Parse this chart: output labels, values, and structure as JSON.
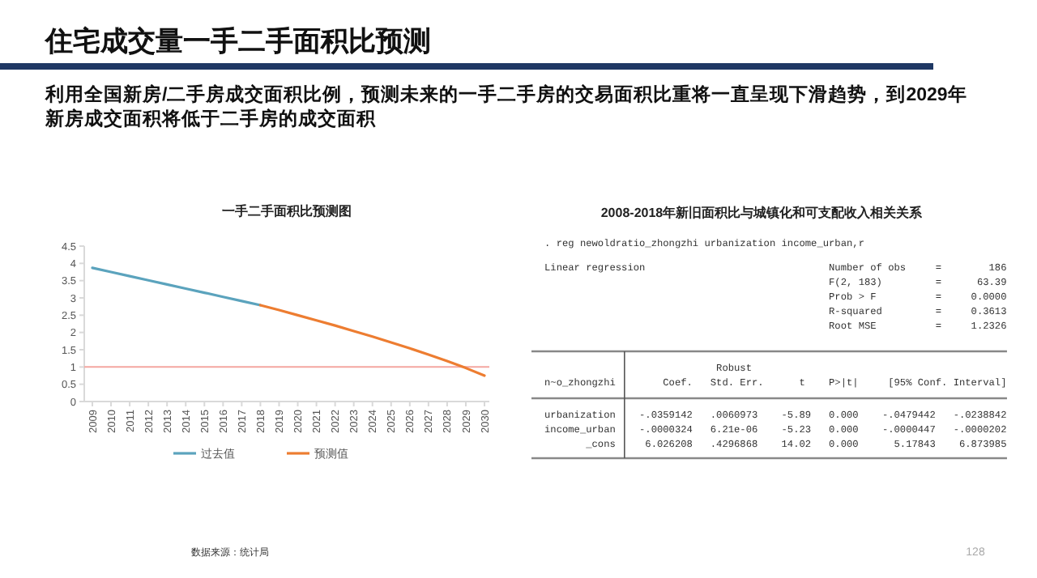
{
  "chart_data": [
    {
      "type": "line",
      "title": "一手二手面积比预测图",
      "annotations": [
        "住宅成交量一手二手面积比预测",
        "利用全国新房/二手房成交面积比例，预测未来的一手二手房的交易面积比重将一直呈现下滑趋势，到2029年新房成交面积将低于二手房的成交面积",
        "数据来源：统计局",
        "128"
      ],
      "categories": [
        "2009",
        "2010",
        "2011",
        "2012",
        "2013",
        "2014",
        "2015",
        "2016",
        "2017",
        "2018",
        "2019",
        "2020",
        "2021",
        "2022",
        "2023",
        "2024",
        "2025",
        "2026",
        "2027",
        "2028",
        "2029",
        "2030"
      ],
      "series": [
        {
          "name": "过去值",
          "color": "#5ba3bd",
          "values": [
            3.87,
            3.75,
            3.63,
            3.51,
            3.39,
            3.27,
            3.15,
            3.03,
            2.91,
            2.79,
            null,
            null,
            null,
            null,
            null,
            null,
            null,
            null,
            null,
            null,
            null,
            null
          ]
        },
        {
          "name": "预测值",
          "color": "#ed7d31",
          "values": [
            null,
            null,
            null,
            null,
            null,
            null,
            null,
            null,
            null,
            2.79,
            2.65,
            2.5,
            2.35,
            2.2,
            2.04,
            1.88,
            1.71,
            1.54,
            1.36,
            1.17,
            0.97,
            0.75
          ]
        }
      ],
      "ylim": [
        0,
        4.5
      ],
      "yticks": [
        0,
        0.5,
        1,
        1.5,
        2,
        2.5,
        3,
        3.5,
        4,
        4.5
      ],
      "ref_lines": [
        {
          "axis": "y",
          "value": 1,
          "color": "#f4a6a0"
        }
      ],
      "legend": "bottom",
      "line_style": "solid",
      "marker": "none"
    },
    {
      "type": "other",
      "title": "2008-2018年新旧面积比与城镇化和可支配收入相关关系",
      "annotations": [
        ". reg newoldratio_zhongzhi urbanization income_urban,r",
        "Linear regression                               Number of obs     =        186",
        "                                                F(2, 183)         =      63.39",
        "                                                Prob > F          =     0.0000",
        "                                                R-squared         =     0.3613",
        "                                                Root MSE          =     1.2326",
        "                             Robust",
        "n~o_zhongzhi        Coef.   Std. Err.      t    P>|t|     [95% Conf. Interval]",
        "urbanization    -.0359142   .0060973    -5.89   0.000    -.0479442   -.0238842",
        "income_urban    -.0000324   6.21e-06    -5.23   0.000    -.0000447   -.0000202",
        "       _cons     6.026208   .4296868    14.02   0.000      5.17843    6.873985"
      ]
    }
  ]
}
